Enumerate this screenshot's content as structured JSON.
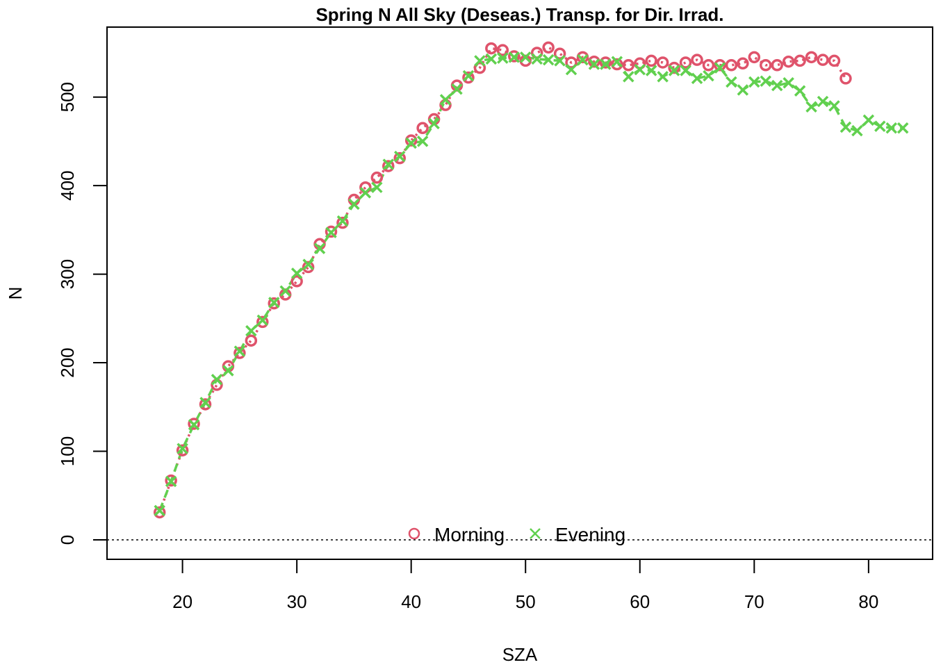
{
  "chart_data": {
    "type": "scatter",
    "title": "Spring N All Sky (Deseas.) Transp. for Dir. Irrad.",
    "xlabel": "SZA",
    "ylabel": "N",
    "xlim": [
      13.4,
      85.6
    ],
    "ylim": [
      -22,
      579
    ],
    "xticks": [
      20,
      30,
      40,
      50,
      60,
      70,
      80
    ],
    "yticks": [
      0,
      100,
      200,
      300,
      400,
      500
    ],
    "grid": false,
    "legend_position": "bottom-center",
    "reference_line": {
      "y": 0,
      "style": "dotted"
    },
    "colors": {
      "morning": "#DF536B",
      "evening": "#61D04F"
    },
    "series": [
      {
        "name": "Morning",
        "marker": "circle",
        "x": [
          18,
          19,
          20,
          21,
          22,
          23,
          24,
          25,
          26,
          27,
          28,
          29,
          30,
          31,
          32,
          33,
          34,
          35,
          36,
          37,
          38,
          39,
          40,
          41,
          42,
          43,
          44,
          45,
          46,
          47,
          48,
          49,
          50,
          51,
          52,
          53,
          54,
          55,
          56,
          57,
          58,
          59,
          60,
          61,
          62,
          63,
          64,
          65,
          66,
          67,
          68,
          69,
          70,
          71,
          72,
          73,
          74,
          75,
          76,
          77,
          78
        ],
        "y": [
          31,
          67,
          101,
          131,
          153,
          175,
          196,
          211,
          225,
          246,
          267,
          277,
          292,
          308,
          334,
          348,
          358,
          384,
          398,
          409,
          422,
          431,
          451,
          465,
          475,
          491,
          513,
          522,
          533,
          555,
          553,
          546,
          541,
          550,
          556,
          549,
          539,
          545,
          540,
          539,
          537,
          536,
          538,
          541,
          539,
          533,
          539,
          542,
          536,
          536,
          536,
          538,
          545,
          536,
          536,
          540,
          541,
          545,
          542,
          541,
          521
        ]
      },
      {
        "name": "Evening",
        "marker": "x",
        "x": [
          18,
          19,
          20,
          21,
          22,
          23,
          24,
          25,
          26,
          27,
          28,
          29,
          30,
          31,
          32,
          33,
          34,
          35,
          36,
          37,
          38,
          39,
          40,
          41,
          42,
          43,
          44,
          45,
          46,
          47,
          48,
          49,
          50,
          51,
          52,
          53,
          54,
          55,
          56,
          57,
          58,
          59,
          60,
          61,
          62,
          63,
          64,
          65,
          66,
          67,
          68,
          69,
          70,
          71,
          72,
          73,
          74,
          75,
          76,
          77,
          78,
          79,
          80,
          81,
          82,
          83
        ],
        "y": [
          33,
          66,
          103,
          130,
          155,
          181,
          191,
          213,
          236,
          248,
          268,
          281,
          301,
          311,
          329,
          347,
          360,
          379,
          392,
          398,
          424,
          433,
          448,
          450,
          470,
          497,
          509,
          524,
          541,
          543,
          544,
          545,
          545,
          543,
          542,
          541,
          531,
          542,
          537,
          537,
          540,
          523,
          531,
          530,
          523,
          530,
          530,
          521,
          524,
          533,
          517,
          508,
          517,
          518,
          513,
          516,
          507,
          489,
          495,
          490,
          466,
          462,
          474,
          467,
          465,
          465
        ]
      }
    ]
  }
}
